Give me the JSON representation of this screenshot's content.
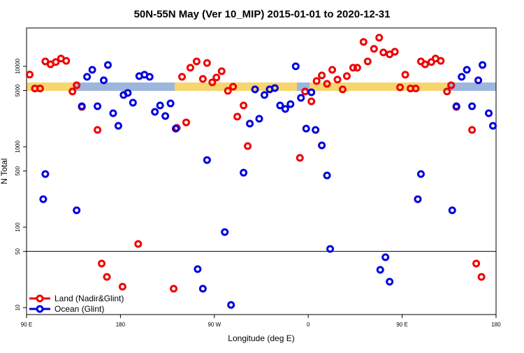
{
  "chart_data": {
    "type": "scatter",
    "title": "50N-55N May (Ver 10_MIP)   2015-01-01 to 2020-12-31",
    "x_label": "Longitude (deg E)",
    "y_label": "N Total",
    "xlim": [
      90,
      540
    ],
    "ylim": [
      8.2,
      30000
    ],
    "y_scale": "log",
    "xticks": [
      {
        "value": 90,
        "label": "90 E"
      },
      {
        "value": 180,
        "label": "180"
      },
      {
        "value": 270,
        "label": "90 W"
      },
      {
        "value": 360,
        "label": "0"
      },
      {
        "value": 450,
        "label": "90 E"
      },
      {
        "value": 540,
        "label": "180"
      }
    ],
    "yticks": [
      10,
      50,
      100,
      500,
      1000,
      5000,
      10000
    ],
    "hline": 50,
    "legend": "bottom-left",
    "series": [
      {
        "name": "Land (Nadir&Glint)",
        "color": "#ee0000",
        "x": [
          93,
          98,
          103,
          108,
          113,
          118,
          123,
          128,
          134,
          138,
          143,
          158,
          162,
          167,
          182,
          197,
          231,
          234,
          239,
          243,
          247,
          253,
          259,
          263,
          268,
          272,
          277,
          283,
          288,
          292,
          298,
          302,
          352,
          357,
          363,
          368,
          373,
          378,
          383,
          388,
          393,
          397,
          403,
          407,
          413,
          417,
          423,
          428,
          432,
          438,
          443,
          448,
          453,
          458,
          463,
          468,
          472,
          478,
          482,
          487,
          493,
          497,
          502,
          517,
          521,
          526
        ],
        "values": [
          7900,
          5300,
          5300,
          11500,
          10600,
          11300,
          12500,
          11700,
          4870,
          5820,
          3130,
          1620,
          35.3,
          24.1,
          18.2,
          61.9,
          17.2,
          1720,
          7410,
          2010,
          9610,
          11500,
          6970,
          11000,
          6310,
          7260,
          8690,
          4960,
          5590,
          2370,
          3260,
          1020,
          727,
          4870,
          3670,
          6570,
          7710,
          6060,
          9060,
          6840,
          5170,
          7560,
          9610,
          9610,
          20100,
          11500,
          16500,
          22700,
          14900,
          14100,
          15200,
          5480,
          7870,
          5300,
          5300,
          11500,
          10600,
          11300,
          12500,
          11700,
          4870,
          5820,
          3130,
          1620,
          35.3,
          24.1
        ]
      },
      {
        "name": "Ocean (Glint)",
        "color": "#0000dd",
        "x": [
          106,
          108,
          138,
          143,
          148,
          153,
          158,
          164,
          168,
          173,
          178,
          183,
          187,
          192,
          198,
          203,
          208,
          213,
          218,
          223,
          228,
          233,
          254,
          259,
          263,
          280,
          286,
          298,
          304,
          309,
          313,
          318,
          323,
          328,
          333,
          338,
          343,
          348,
          353,
          358,
          363,
          367,
          373,
          378,
          381,
          429,
          434,
          438,
          465,
          468,
          498,
          502,
          507,
          512,
          517,
          523,
          527,
          533,
          537
        ],
        "values": [
          223,
          458,
          162,
          3190,
          7410,
          9060,
          3190,
          6700,
          10400,
          2610,
          1820,
          4400,
          4670,
          3530,
          7560,
          7870,
          7410,
          2720,
          3260,
          2410,
          3460,
          1680,
          30.1,
          17.2,
          684,
          86.9,
          10.8,
          476,
          1940,
          5170,
          2230,
          4400,
          5170,
          5370,
          3260,
          2950,
          3390,
          10000,
          4060,
          1680,
          4760,
          1620,
          1040,
          440,
          53.7,
          29.5,
          42.3,
          21.0,
          223,
          458,
          162,
          3190,
          7410,
          9060,
          3190,
          6700,
          10400,
          2610,
          1820
        ]
      }
    ]
  }
}
